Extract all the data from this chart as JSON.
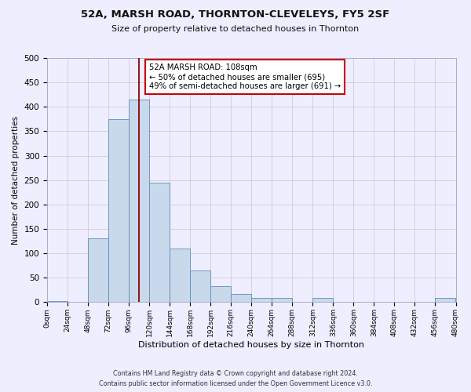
{
  "title": "52A, MARSH ROAD, THORNTON-CLEVELEYS, FY5 2SF",
  "subtitle": "Size of property relative to detached houses in Thornton",
  "xlabel": "Distribution of detached houses by size in Thornton",
  "ylabel": "Number of detached properties",
  "bar_color": "#c9d9ec",
  "bar_edge_color": "#5b8db8",
  "bin_edges": [
    0,
    24,
    48,
    72,
    96,
    120,
    144,
    168,
    192,
    216,
    240,
    264,
    288,
    312,
    336,
    360,
    384,
    408,
    432,
    456,
    480
  ],
  "bar_heights": [
    3,
    0,
    130,
    375,
    415,
    245,
    110,
    65,
    33,
    17,
    8,
    8,
    0,
    8,
    0,
    0,
    0,
    0,
    0,
    8
  ],
  "property_size": 108,
  "vline_color": "#8b0000",
  "annotation_line1": "52A MARSH ROAD: 108sqm",
  "annotation_line2": "← 50% of detached houses are smaller (695)",
  "annotation_line3": "49% of semi-detached houses are larger (691) →",
  "annotation_box_color": "white",
  "annotation_box_edge_color": "#cc0000",
  "ylim": [
    0,
    500
  ],
  "yticks": [
    0,
    50,
    100,
    150,
    200,
    250,
    300,
    350,
    400,
    450,
    500
  ],
  "footer1": "Contains HM Land Registry data © Crown copyright and database right 2024.",
  "footer2": "Contains public sector information licensed under the Open Government Licence v3.0.",
  "background_color": "#eeeeff",
  "grid_color": "#ccccdd",
  "title_fontsize": 9.5,
  "subtitle_fontsize": 8
}
